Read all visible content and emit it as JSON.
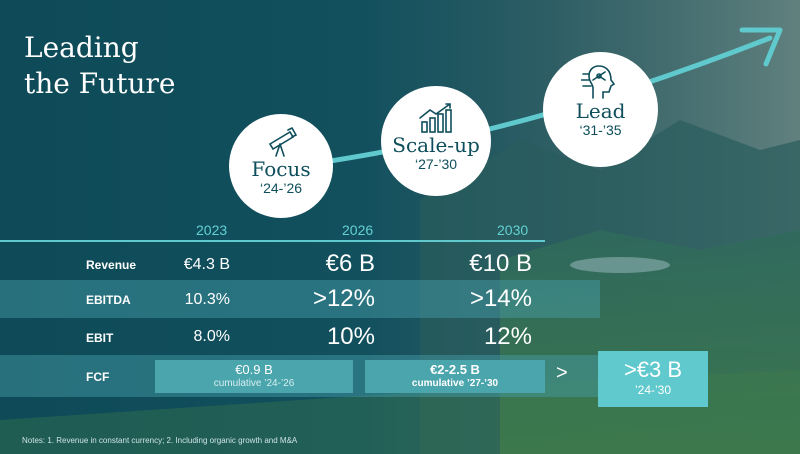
{
  "title": {
    "line1": "Leading",
    "line2": "the Future"
  },
  "phases": [
    {
      "name": "Focus",
      "years": "‘24-’26",
      "icon": "telescope-icon"
    },
    {
      "name": "Scale-up",
      "years": "‘27-’30",
      "icon": "bar-chart-growth-icon"
    },
    {
      "name": "Lead",
      "years": "‘31-’35",
      "icon": "ai-head-icon"
    }
  ],
  "table": {
    "years": [
      "2023",
      "2026",
      "2030"
    ],
    "rows": [
      {
        "label": "Revenue",
        "v2023": "€4.3 B",
        "v2026": "€6 B",
        "v2030": "€10 B"
      },
      {
        "label": "EBITDA",
        "v2023": "10.3%",
        "v2026": ">12%",
        "v2030": ">14%"
      },
      {
        "label": "EBIT",
        "v2023": "8.0%",
        "v2026": "10%",
        "v2030": "12%"
      }
    ],
    "fcf": {
      "label": "FCF",
      "box1": {
        "value": "€0.9 B",
        "note": "cumulative ’24-’26"
      },
      "box2": {
        "value": "€2-2.5 B",
        "note": "cumulative ’27-’30"
      },
      "chevron": ">",
      "box3": {
        "value": ">€3 B",
        "note": "’24-’30"
      }
    }
  },
  "notes": "Notes: 1. Revenue in constant currency; 2. Including organic growth and M&A",
  "colors": {
    "accent": "#5fc9cd",
    "background": "#0e4a57",
    "circle_text": "#0f4e5b"
  }
}
